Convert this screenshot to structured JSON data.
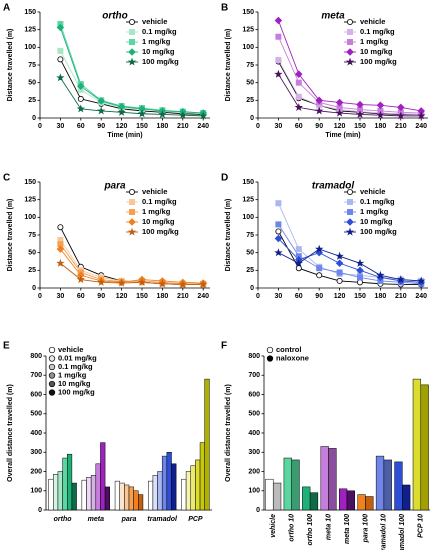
{
  "chart_data": [
    {
      "type": "line",
      "panel_label": "A",
      "title": "ortho",
      "ylabel": "Distance travelled (m)",
      "xlabel": "Time (min)",
      "x": [
        30,
        60,
        90,
        120,
        150,
        180,
        210,
        240
      ],
      "xlim": [
        0,
        250
      ],
      "xticks": [
        0,
        30,
        60,
        90,
        120,
        150,
        180,
        210,
        240
      ],
      "ylim": [
        0,
        150
      ],
      "yticks": [
        0,
        25,
        50,
        75,
        100,
        125,
        150
      ],
      "legend": "upper right",
      "series": [
        {
          "name": "vehicle",
          "color": "#000000",
          "values": [
            83,
            27,
            20,
            13,
            10,
            8,
            6,
            5
          ]
        },
        {
          "name": "0.1 mg/kg",
          "color": "#a8e6c8",
          "values": [
            95,
            40,
            22,
            15,
            12,
            10,
            8,
            6
          ]
        },
        {
          "name": "1 mg/kg",
          "color": "#5ad6a0",
          "values": [
            133,
            48,
            25,
            17,
            14,
            11,
            9,
            7
          ]
        },
        {
          "name": "10 mg/kg",
          "color": "#1fb07a",
          "values": [
            128,
            45,
            24,
            16,
            13,
            10,
            9,
            7
          ]
        },
        {
          "name": "100 mg/kg",
          "color": "#0d6b47",
          "values": [
            57,
            13,
            10,
            8,
            6,
            5,
            4,
            3
          ]
        }
      ]
    },
    {
      "type": "line",
      "panel_label": "B",
      "title": "meta",
      "ylabel": "Distance travelled (m)",
      "xlabel": "Time (min)",
      "x": [
        30,
        60,
        90,
        120,
        150,
        180,
        210,
        240
      ],
      "xlim": [
        0,
        250
      ],
      "xticks": [
        0,
        30,
        60,
        90,
        120,
        150,
        180,
        210,
        240
      ],
      "ylim": [
        0,
        150
      ],
      "yticks": [
        0,
        25,
        50,
        75,
        100,
        125,
        150
      ],
      "legend": "upper right",
      "series": [
        {
          "name": "vehicle",
          "color": "#000000",
          "values": [
            80,
            28,
            18,
            10,
            8,
            6,
            5,
            5
          ]
        },
        {
          "name": "0.1 mg/kg",
          "color": "#d8b0e8",
          "values": [
            82,
            30,
            18,
            12,
            9,
            7,
            6,
            5
          ]
        },
        {
          "name": "1 mg/kg",
          "color": "#c77ddb",
          "values": [
            115,
            50,
            22,
            15,
            12,
            10,
            8,
            7
          ]
        },
        {
          "name": "10 mg/kg",
          "color": "#a020c0",
          "values": [
            138,
            62,
            25,
            22,
            19,
            18,
            15,
            10
          ]
        },
        {
          "name": "100 mg/kg",
          "color": "#4b1060",
          "values": [
            62,
            15,
            10,
            7,
            5,
            4,
            3,
            3
          ]
        }
      ]
    },
    {
      "type": "line",
      "panel_label": "C",
      "title": "para",
      "ylabel": "Distance travelled (m)",
      "x": [
        30,
        60,
        90,
        120,
        150,
        180,
        210,
        240
      ],
      "xlim": [
        0,
        250
      ],
      "xticks": [
        0,
        30,
        60,
        90,
        120,
        150,
        180,
        210,
        240
      ],
      "ylim": [
        0,
        150
      ],
      "yticks": [
        0,
        25,
        50,
        75,
        100,
        125,
        150
      ],
      "legend": "upper right",
      "series": [
        {
          "name": "vehicle",
          "color": "#000000",
          "values": [
            86,
            30,
            18,
            10,
            8,
            6,
            5,
            5
          ]
        },
        {
          "name": "0.1 mg/kg",
          "color": "#f7c79a",
          "values": [
            68,
            25,
            15,
            10,
            8,
            6,
            5,
            5
          ]
        },
        {
          "name": "1 mg/kg",
          "color": "#f5a050",
          "values": [
            62,
            22,
            12,
            9,
            10,
            8,
            6,
            6
          ]
        },
        {
          "name": "10 mg/kg",
          "color": "#f08020",
          "values": [
            55,
            18,
            10,
            8,
            12,
            10,
            8,
            7
          ]
        },
        {
          "name": "100 mg/kg",
          "color": "#c06010",
          "values": [
            35,
            12,
            8,
            7,
            8,
            6,
            5,
            5
          ]
        }
      ]
    },
    {
      "type": "line",
      "panel_label": "D",
      "title": "tramadol",
      "ylabel": "Distance travelled (m)",
      "x": [
        30,
        60,
        90,
        120,
        150,
        180,
        210,
        240
      ],
      "xlim": [
        0,
        250
      ],
      "xticks": [
        0,
        30,
        60,
        90,
        120,
        150,
        180,
        210,
        240
      ],
      "ylim": [
        0,
        150
      ],
      "yticks": [
        0,
        25,
        50,
        75,
        100,
        125,
        150
      ],
      "legend": "upper right",
      "series": [
        {
          "name": "vehicle",
          "color": "#000000",
          "values": [
            80,
            28,
            18,
            10,
            8,
            6,
            5,
            5
          ]
        },
        {
          "name": "0.1 mg/kg",
          "color": "#a9b8f0",
          "values": [
            120,
            55,
            30,
            20,
            18,
            15,
            12,
            10
          ]
        },
        {
          "name": "1 mg/kg",
          "color": "#6f86e8",
          "values": [
            90,
            45,
            28,
            22,
            15,
            10,
            8,
            6
          ]
        },
        {
          "name": "10 mg/kg",
          "color": "#2d4fd8",
          "values": [
            70,
            40,
            50,
            35,
            25,
            15,
            10,
            8
          ]
        },
        {
          "name": "100 mg/kg",
          "color": "#10208a",
          "values": [
            50,
            35,
            55,
            45,
            35,
            18,
            12,
            10
          ]
        }
      ]
    },
    {
      "type": "bar",
      "panel_label": "E",
      "ylabel": "Overall distance travelled (m)",
      "categories": [
        "ortho",
        "meta",
        "para",
        "tramadol",
        "PCP"
      ],
      "ylim": [
        0,
        800
      ],
      "yticks": [
        0,
        100,
        200,
        300,
        400,
        500,
        600,
        700,
        800
      ],
      "legend": "upper left",
      "series": [
        {
          "name": "vehicle",
          "color": "#ffffff",
          "colors": [
            "#ffffff",
            "#ffffff",
            "#ffffff",
            "#ffffff",
            "#ffffff"
          ],
          "values": [
            160,
            155,
            150,
            150,
            160
          ]
        },
        {
          "name": "0.01 mg/kg",
          "color": "#e8e8e8",
          "colors": [
            "#d4f5e4",
            "#eed8f5",
            "#fde3cc",
            "#d8e0fa",
            "#f5f5b0"
          ],
          "values": [
            185,
            170,
            140,
            180,
            200
          ]
        },
        {
          "name": "0.1 mg/kg",
          "color": "#c8c8c8",
          "colors": [
            "#a8e6c8",
            "#d8b0e8",
            "#f7c79a",
            "#a9b8f0",
            "#eaea70"
          ],
          "values": [
            200,
            180,
            130,
            200,
            230
          ]
        },
        {
          "name": "1 mg/kg",
          "color": "#909090",
          "colors": [
            "#5ad6a0",
            "#c77ddb",
            "#f5a050",
            "#6f86e8",
            "#dcdc30"
          ],
          "values": [
            270,
            240,
            120,
            280,
            260
          ]
        },
        {
          "name": "10 mg/kg",
          "color": "#555555",
          "colors": [
            "#1fb07a",
            "#a020c0",
            "#f08020",
            "#2d4fd8",
            "#c8c810"
          ],
          "values": [
            290,
            350,
            100,
            300,
            350
          ]
        },
        {
          "name": "100 mg/kg",
          "color": "#111111",
          "colors": [
            "#0d6b47",
            "#4b1060",
            "#c06010",
            "#10208a",
            "#b0b000"
          ],
          "values": [
            140,
            120,
            80,
            240,
            680
          ]
        }
      ]
    },
    {
      "type": "bar",
      "panel_label": "F",
      "ylabel": "Overall distance travelled (m)",
      "categories": [
        "vehicle",
        "ortho 10",
        "ortho 100",
        "meta 10",
        "meta 100",
        "para 100",
        "tramadol 10",
        "tramadol 100",
        "PCP 10"
      ],
      "ylim": [
        0,
        800
      ],
      "yticks": [
        0,
        100,
        200,
        300,
        400,
        500,
        600,
        700,
        800
      ],
      "legend": "upper left",
      "rotate_labels": true,
      "series": [
        {
          "name": "control",
          "color": "#ffffff",
          "colors": [
            "#ffffff",
            "#5ad6a0",
            "#1fb07a",
            "#c77ddb",
            "#a020c0",
            "#f08020",
            "#6f86e8",
            "#2d4fd8",
            "#dcdc30"
          ],
          "values": [
            160,
            270,
            120,
            330,
            110,
            80,
            280,
            250,
            680
          ]
        },
        {
          "name": "naloxone",
          "color": "#000000",
          "colors": [
            "#bbbbbb",
            "#3a9c70",
            "#0d6b47",
            "#8a4f9c",
            "#4b1060",
            "#c06010",
            "#4a5fa8",
            "#10208a",
            "#a0a000"
          ],
          "values": [
            140,
            260,
            90,
            320,
            100,
            70,
            260,
            130,
            650
          ]
        }
      ]
    }
  ]
}
